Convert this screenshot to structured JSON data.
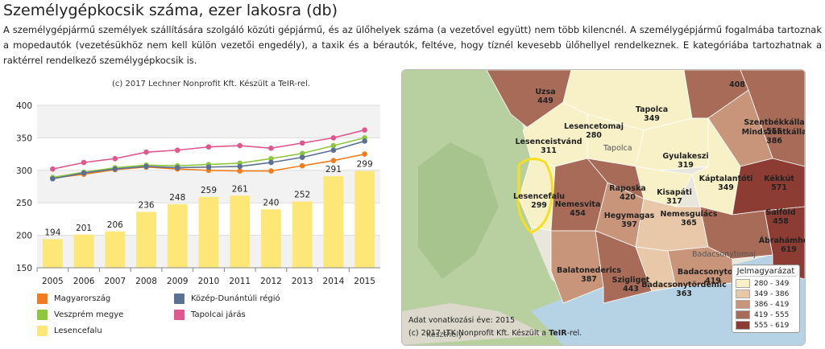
{
  "page": {
    "title": "Személygépkocsik száma, ezer lakosra (db)",
    "description": "A személygépjármű személyek szállítására szolgáló közúti gépjármű, és az ülőhelyek száma (a vezetővel együtt) nem több kilencnél. A személygépjármű fogalmába tartoznak a mopedautók (vezetésükhöz nem kell külön vezetői engedély), a taxik és a bérautók, feltéve, hogy tíznél kevesebb ülőhellyel rendelkeznek. E kategóriába tartozhatnak a raktérrel rendelkező személygépkocsik is."
  },
  "chart_data": {
    "type": "bar",
    "credit": "(c) 2017 Lechner Nonprofit Kft. Készült a TeIR-rel.",
    "categories": [
      "2005",
      "2006",
      "2007",
      "2008",
      "2009",
      "2010",
      "2011",
      "2012",
      "2013",
      "2014",
      "2015"
    ],
    "ylim": [
      150,
      400
    ],
    "yticks": [
      150,
      200,
      250,
      300,
      350,
      400
    ],
    "series": [
      {
        "name": "Lesencefalu",
        "type": "bar",
        "color": "#fde777",
        "values": [
          194,
          201,
          206,
          236,
          248,
          259,
          261,
          240,
          252,
          291,
          299
        ]
      },
      {
        "name": "Magyarország",
        "type": "line",
        "color": "#f07d1d",
        "values": [
          288,
          294,
          301,
          305,
          302,
          300,
          299,
          299,
          307,
          315,
          325
        ]
      },
      {
        "name": "Veszprém megye",
        "type": "line",
        "color": "#8ec63f",
        "values": [
          289,
          297,
          304,
          308,
          307,
          309,
          311,
          318,
          326,
          338,
          350
        ]
      },
      {
        "name": "Közép-Dunántúli régió",
        "type": "line",
        "color": "#5a7194",
        "values": [
          287,
          296,
          302,
          306,
          304,
          305,
          306,
          312,
          320,
          331,
          345
        ]
      },
      {
        "name": "Tapolcai járás",
        "type": "line",
        "color": "#e0578f",
        "values": [
          302,
          312,
          318,
          328,
          331,
          336,
          338,
          334,
          342,
          350,
          362
        ]
      }
    ],
    "legend_order": [
      "Magyarország",
      "Közép-Dunántúli régió",
      "Veszprém megye",
      "Tapolcai járás",
      "Lesencefalu"
    ]
  },
  "map": {
    "year_note": "Adat vonatkozási éve: 2015",
    "credit_prefix": "(c) 2017 LTK Nonprofit Kft. Készült a ",
    "credit_brand": "TeIR",
    "credit_suffix": "-rel.",
    "legend_title": "Jelmagyarázat",
    "legend_ranges": [
      {
        "label": "280 - 349",
        "color": "#f8f1c8"
      },
      {
        "label": "349 - 386",
        "color": "#e8c8a8"
      },
      {
        "label": "386 - 419",
        "color": "#c9957a"
      },
      {
        "label": "419 - 555",
        "color": "#a86b58"
      },
      {
        "label": "555 - 619",
        "color": "#8c3c32"
      }
    ],
    "regions": [
      {
        "name": "Uzsa",
        "value": "449"
      },
      {
        "name": "Tapolca",
        "value": "349"
      },
      {
        "name": "Lesenceistvánd",
        "value": "311"
      },
      {
        "name": "Lesencetomaj",
        "value": "280"
      },
      {
        "name": "Gyulakeszi",
        "value": "319"
      },
      {
        "name": "Szentbékkálla",
        "value": "555"
      },
      {
        "name": "Mindszentkálla",
        "value": "386"
      },
      {
        "name": "Káptalantóti",
        "value": "349"
      },
      {
        "name": "Kékkút",
        "value": "571"
      },
      {
        "name": "Lesencefalu",
        "value": "299"
      },
      {
        "name": "Nemesvita",
        "value": "454"
      },
      {
        "name": "Raposka",
        "value": "420"
      },
      {
        "name": "Kisapáti",
        "value": "317"
      },
      {
        "name": "Hegymagas",
        "value": "397"
      },
      {
        "name": "Nemesgulács",
        "value": "365"
      },
      {
        "name": "Salföld",
        "value": "458"
      },
      {
        "name": "Ábrahámhegy",
        "value": "619"
      },
      {
        "name": "Balatonederics",
        "value": "387"
      },
      {
        "name": "Szigliget",
        "value": "443"
      },
      {
        "name": "Badacsonytördemic",
        "value": "363"
      },
      {
        "name": "Badacsonytomaj",
        "value": "419"
      },
      {
        "name": "",
        "value": "408"
      }
    ],
    "towns": [
      "Tapolca",
      "Keszthely",
      "Badacsonytomaj"
    ]
  }
}
